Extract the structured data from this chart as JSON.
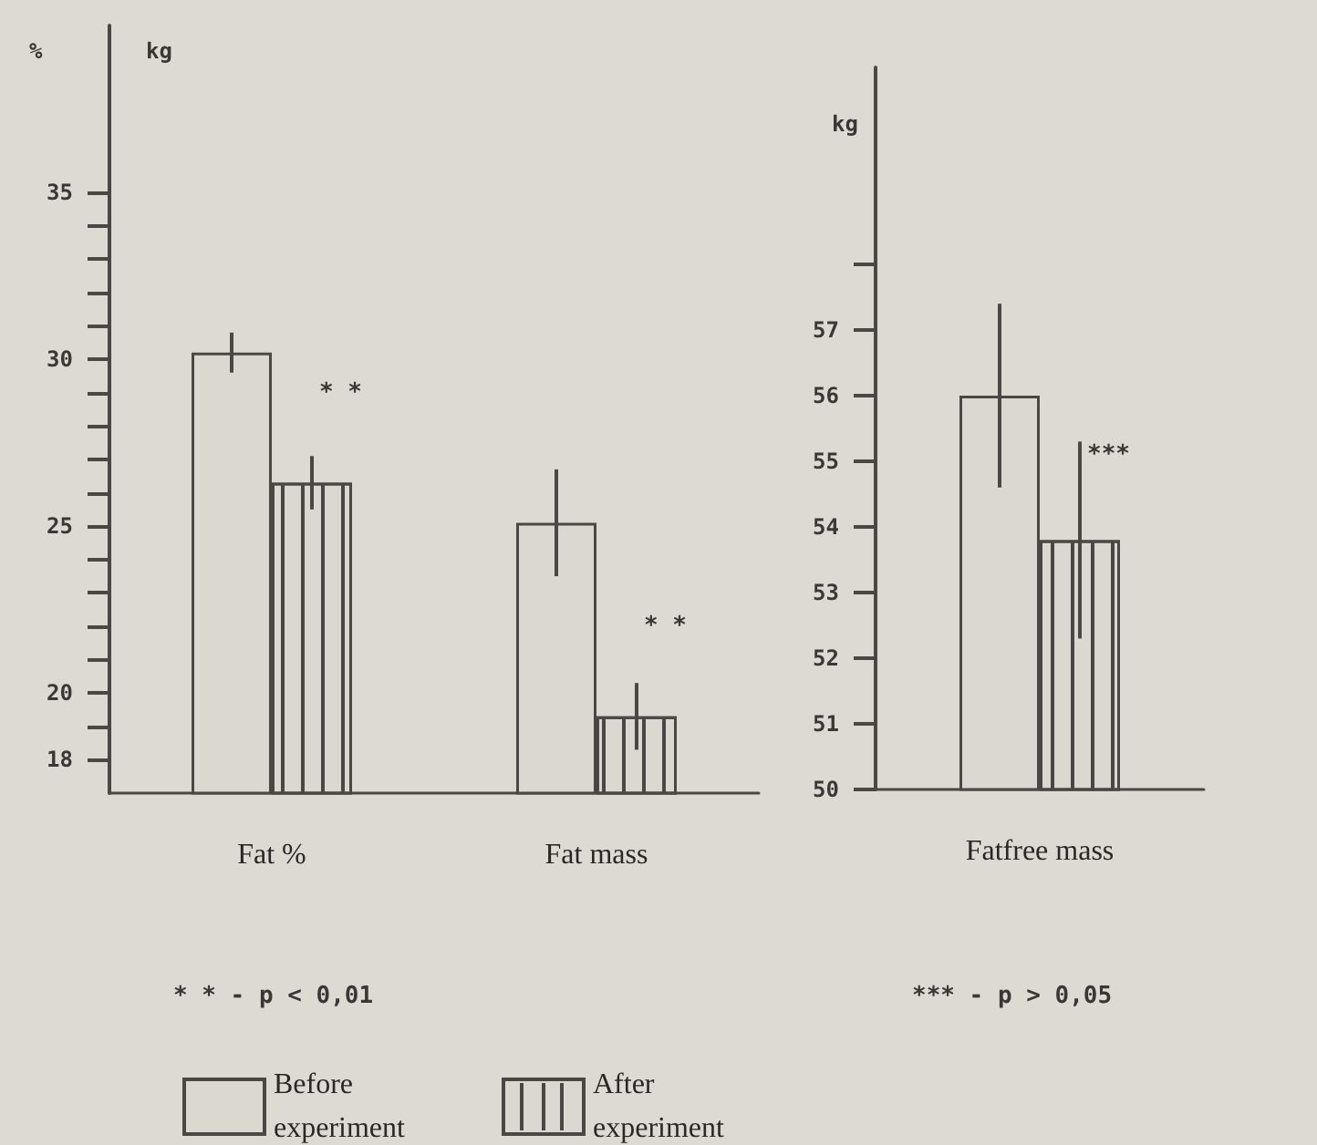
{
  "chart_data": [
    {
      "type": "bar",
      "categories": [
        "Fat %",
        "Fat mass"
      ],
      "series": [
        {
          "name": "Before experiment",
          "color": "#dad8d0",
          "values": [
            30.2,
            25.1
          ],
          "errors": [
            0.6,
            1.6
          ]
        },
        {
          "name": "After experiment",
          "color": "#dad8d0",
          "values": [
            26.3,
            19.3
          ],
          "errors": [
            0.8,
            1.0
          ]
        }
      ],
      "ylabel": "%",
      "ylim": [
        17,
        40
      ],
      "yticks": [
        18,
        {
          "value": 19,
          "label": null
        },
        20,
        {
          "value": 21,
          "label": null
        },
        {
          "value": 22,
          "label": null
        },
        {
          "value": 23,
          "label": null
        },
        {
          "value": 24,
          "label": null
        },
        25,
        {
          "value": 26,
          "label": null
        },
        {
          "value": 27,
          "label": null
        },
        {
          "value": 28,
          "label": null
        },
        {
          "value": 29,
          "label": null
        },
        30,
        {
          "value": 31,
          "label": null
        },
        {
          "value": 32,
          "label": null
        },
        {
          "value": 33,
          "label": null
        },
        {
          "value": 34,
          "label": null
        },
        35
      ],
      "annotations": [
        "kg",
        {
          "text": "* *",
          "x": "Fat %",
          "y": 29.0
        },
        {
          "text": "* *",
          "x": "Fat mass",
          "y": 22.0
        },
        "* * - p < 0,01"
      ],
      "legend": "bottom",
      "grid": false
    },
    {
      "type": "bar",
      "categories": [
        "Fatfree mass"
      ],
      "series": [
        {
          "color": "#dad8d0",
          "values": [
            56.0
          ],
          "errors": [
            1.4
          ]
        },
        {
          "color": "#dad8d0",
          "values": [
            53.8
          ],
          "errors": [
            1.5
          ]
        }
      ],
      "ylabel": "kg",
      "ylim": [
        50,
        61
      ],
      "yticks": [
        50,
        51,
        52,
        53,
        54,
        55,
        56,
        57,
        {
          "value": 58,
          "label": null
        }
      ],
      "annotations": [
        {
          "text": "***",
          "x": "Fatfree mass",
          "y": 55.1
        },
        "*** - p > 0,05"
      ],
      "grid": false
    }
  ]
}
